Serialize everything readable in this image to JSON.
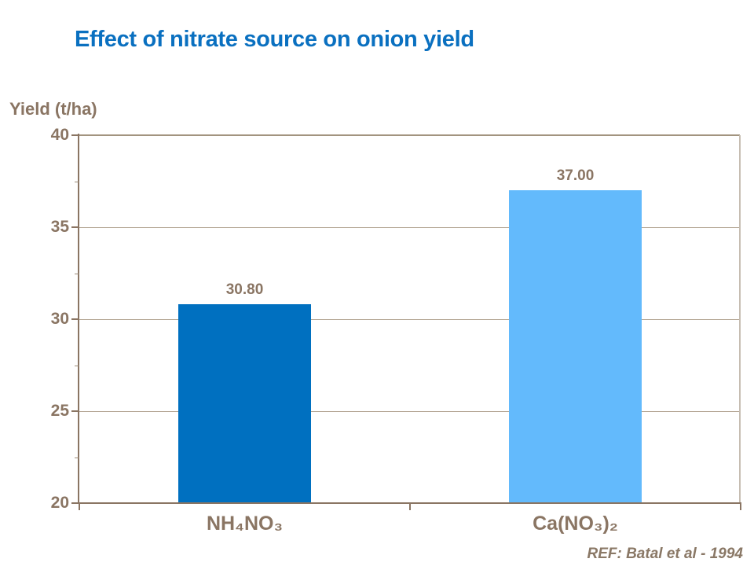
{
  "chart_data": {
    "type": "bar",
    "title": "Effect of nitrate source on onion yield",
    "ylabel": "Yield (t/ha)",
    "xlabel": "",
    "categories": [
      "NH₄NO₃",
      "Ca(NO₃)₂"
    ],
    "values": [
      30.8,
      37.0
    ],
    "value_labels": [
      "30.80",
      "37.00"
    ],
    "bar_colors": [
      "#0070C0",
      "#63BAFC"
    ],
    "ylim": [
      20,
      40
    ],
    "yticks": [
      40,
      35,
      30,
      25,
      20
    ],
    "minor_tick_interval": 2.5,
    "grid": "horizontal-major-only",
    "legend": "none"
  },
  "footer": {
    "ref": "REF: Batal et al - 1994"
  },
  "colors": {
    "title_blue": "#0A70C0",
    "axis_text_brown": "#8A7563",
    "gridline": "#B5A795",
    "plot_right_border": "#C6BDB2",
    "bar_dark_blue": "#0070C0",
    "bar_light_blue": "#63BAFC"
  }
}
